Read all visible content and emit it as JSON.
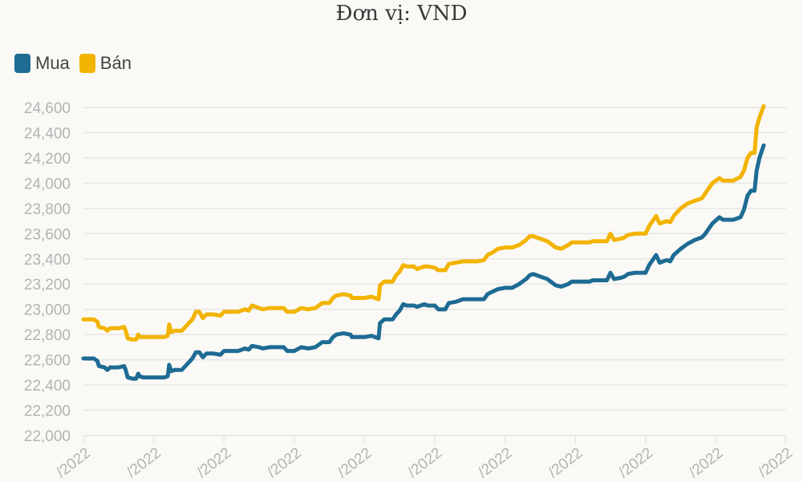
{
  "subtitle": "Đơn vị: VND",
  "colors": {
    "mua": "#1e6b93",
    "ban": "#f2b400",
    "grid": "#e6e6e6",
    "tick_text": "#b3b3b3"
  },
  "chart_data": {
    "type": "line",
    "title": "",
    "subtitle": "Đơn vị: VND",
    "xlabel": "",
    "ylabel": "",
    "ylim": [
      22000,
      24600
    ],
    "y_ticks": [
      22000,
      22200,
      22400,
      22600,
      22800,
      23000,
      23200,
      23400,
      23600,
      23800,
      24000,
      24200,
      24400,
      24600
    ],
    "y_tick_labels": [
      "22,000",
      "22,200",
      "22,400",
      "22,600",
      "22,800",
      "23,000",
      "23,200",
      "23,400",
      "23,600",
      "23,800",
      "24,000",
      "24,200",
      "24,400",
      "24,600"
    ],
    "x_tick_labels": [
      "/2022",
      "/2022",
      "/2022",
      "/2022",
      "/2022",
      "/2022",
      "/2022",
      "/2022",
      "/2022",
      "/2022",
      "/2022"
    ],
    "x_range": [
      0,
      10
    ],
    "grid": true,
    "legend": "top-left",
    "series": [
      {
        "name": "Mua",
        "color": "#1e6b93",
        "points": [
          [
            0,
            22610
          ],
          [
            0.15,
            22610
          ],
          [
            0.2,
            22590
          ],
          [
            0.22,
            22550
          ],
          [
            0.3,
            22540
          ],
          [
            0.34,
            22520
          ],
          [
            0.38,
            22540
          ],
          [
            0.5,
            22540
          ],
          [
            0.58,
            22550
          ],
          [
            0.6,
            22520
          ],
          [
            0.63,
            22460
          ],
          [
            0.7,
            22450
          ],
          [
            0.75,
            22450
          ],
          [
            0.78,
            22490
          ],
          [
            0.8,
            22470
          ],
          [
            0.85,
            22460
          ],
          [
            1.15,
            22460
          ],
          [
            1.2,
            22470
          ],
          [
            1.22,
            22560
          ],
          [
            1.25,
            22510
          ],
          [
            1.3,
            22520
          ],
          [
            1.4,
            22520
          ],
          [
            1.5,
            22580
          ],
          [
            1.55,
            22610
          ],
          [
            1.6,
            22660
          ],
          [
            1.65,
            22660
          ],
          [
            1.7,
            22620
          ],
          [
            1.75,
            22650
          ],
          [
            1.85,
            22650
          ],
          [
            1.95,
            22640
          ],
          [
            2.0,
            22670
          ],
          [
            2.2,
            22670
          ],
          [
            2.3,
            22690
          ],
          [
            2.35,
            22680
          ],
          [
            2.4,
            22710
          ],
          [
            2.5,
            22700
          ],
          [
            2.55,
            22690
          ],
          [
            2.65,
            22700
          ],
          [
            2.85,
            22700
          ],
          [
            2.9,
            22670
          ],
          [
            3.0,
            22670
          ],
          [
            3.1,
            22700
          ],
          [
            3.2,
            22690
          ],
          [
            3.3,
            22700
          ],
          [
            3.4,
            22740
          ],
          [
            3.5,
            22740
          ],
          [
            3.55,
            22780
          ],
          [
            3.6,
            22800
          ],
          [
            3.7,
            22810
          ],
          [
            3.8,
            22800
          ],
          [
            3.82,
            22780
          ],
          [
            3.9,
            22780
          ],
          [
            4.0,
            22780
          ],
          [
            4.1,
            22790
          ],
          [
            4.15,
            22780
          ],
          [
            4.2,
            22770
          ],
          [
            4.22,
            22890
          ],
          [
            4.28,
            22920
          ],
          [
            4.4,
            22920
          ],
          [
            4.45,
            22960
          ],
          [
            4.5,
            22990
          ],
          [
            4.55,
            23040
          ],
          [
            4.6,
            23030
          ],
          [
            4.7,
            23030
          ],
          [
            4.75,
            23020
          ],
          [
            4.85,
            23040
          ],
          [
            4.9,
            23030
          ],
          [
            5.0,
            23030
          ],
          [
            5.05,
            23000
          ],
          [
            5.15,
            23000
          ],
          [
            5.2,
            23050
          ],
          [
            5.3,
            23060
          ],
          [
            5.4,
            23080
          ],
          [
            5.6,
            23080
          ],
          [
            5.7,
            23080
          ],
          [
            5.75,
            23120
          ],
          [
            5.82,
            23140
          ],
          [
            5.9,
            23160
          ],
          [
            6.0,
            23170
          ],
          [
            6.1,
            23170
          ],
          [
            6.2,
            23200
          ],
          [
            6.3,
            23240
          ],
          [
            6.35,
            23270
          ],
          [
            6.4,
            23280
          ],
          [
            6.5,
            23260
          ],
          [
            6.6,
            23240
          ],
          [
            6.65,
            23220
          ],
          [
            6.72,
            23190
          ],
          [
            6.8,
            23180
          ],
          [
            6.9,
            23200
          ],
          [
            6.95,
            23220
          ],
          [
            7.2,
            23220
          ],
          [
            7.25,
            23230
          ],
          [
            7.45,
            23230
          ],
          [
            7.5,
            23290
          ],
          [
            7.55,
            23240
          ],
          [
            7.65,
            23250
          ],
          [
            7.7,
            23260
          ],
          [
            7.75,
            23280
          ],
          [
            7.85,
            23290
          ],
          [
            8.0,
            23290
          ],
          [
            8.05,
            23350
          ],
          [
            8.15,
            23430
          ],
          [
            8.2,
            23370
          ],
          [
            8.25,
            23380
          ],
          [
            8.3,
            23390
          ],
          [
            8.35,
            23380
          ],
          [
            8.4,
            23430
          ],
          [
            8.5,
            23480
          ],
          [
            8.6,
            23520
          ],
          [
            8.7,
            23550
          ],
          [
            8.8,
            23570
          ],
          [
            8.85,
            23600
          ],
          [
            8.9,
            23640
          ],
          [
            8.95,
            23680
          ],
          [
            9.05,
            23730
          ],
          [
            9.1,
            23710
          ],
          [
            9.25,
            23710
          ],
          [
            9.35,
            23730
          ],
          [
            9.4,
            23790
          ],
          [
            9.45,
            23900
          ],
          [
            9.5,
            23940
          ],
          [
            9.55,
            23940
          ],
          [
            9.58,
            24100
          ],
          [
            9.62,
            24200
          ],
          [
            9.68,
            24300
          ]
        ]
      },
      {
        "name": "Bán",
        "color": "#f2b400",
        "points": [
          [
            0,
            22920
          ],
          [
            0.15,
            22920
          ],
          [
            0.2,
            22900
          ],
          [
            0.22,
            22860
          ],
          [
            0.3,
            22850
          ],
          [
            0.34,
            22830
          ],
          [
            0.38,
            22850
          ],
          [
            0.5,
            22850
          ],
          [
            0.58,
            22860
          ],
          [
            0.6,
            22830
          ],
          [
            0.63,
            22770
          ],
          [
            0.7,
            22760
          ],
          [
            0.75,
            22760
          ],
          [
            0.78,
            22800
          ],
          [
            0.8,
            22780
          ],
          [
            0.85,
            22780
          ],
          [
            1.15,
            22780
          ],
          [
            1.2,
            22790
          ],
          [
            1.22,
            22880
          ],
          [
            1.25,
            22820
          ],
          [
            1.3,
            22830
          ],
          [
            1.4,
            22830
          ],
          [
            1.5,
            22890
          ],
          [
            1.55,
            22920
          ],
          [
            1.6,
            22980
          ],
          [
            1.65,
            22980
          ],
          [
            1.7,
            22930
          ],
          [
            1.75,
            22960
          ],
          [
            1.85,
            22960
          ],
          [
            1.95,
            22950
          ],
          [
            2.0,
            22980
          ],
          [
            2.2,
            22980
          ],
          [
            2.3,
            23000
          ],
          [
            2.35,
            22990
          ],
          [
            2.4,
            23030
          ],
          [
            2.5,
            23010
          ],
          [
            2.55,
            23000
          ],
          [
            2.65,
            23010
          ],
          [
            2.85,
            23010
          ],
          [
            2.9,
            22980
          ],
          [
            3.0,
            22980
          ],
          [
            3.1,
            23010
          ],
          [
            3.2,
            23000
          ],
          [
            3.3,
            23010
          ],
          [
            3.4,
            23050
          ],
          [
            3.5,
            23050
          ],
          [
            3.55,
            23090
          ],
          [
            3.6,
            23110
          ],
          [
            3.7,
            23120
          ],
          [
            3.8,
            23110
          ],
          [
            3.82,
            23090
          ],
          [
            3.9,
            23090
          ],
          [
            4.0,
            23090
          ],
          [
            4.1,
            23100
          ],
          [
            4.15,
            23090
          ],
          [
            4.2,
            23080
          ],
          [
            4.22,
            23190
          ],
          [
            4.28,
            23220
          ],
          [
            4.4,
            23220
          ],
          [
            4.45,
            23270
          ],
          [
            4.5,
            23300
          ],
          [
            4.55,
            23350
          ],
          [
            4.6,
            23340
          ],
          [
            4.7,
            23340
          ],
          [
            4.75,
            23320
          ],
          [
            4.85,
            23340
          ],
          [
            4.9,
            23340
          ],
          [
            5.0,
            23330
          ],
          [
            5.05,
            23310
          ],
          [
            5.15,
            23310
          ],
          [
            5.2,
            23360
          ],
          [
            5.3,
            23370
          ],
          [
            5.4,
            23380
          ],
          [
            5.6,
            23380
          ],
          [
            5.7,
            23390
          ],
          [
            5.75,
            23430
          ],
          [
            5.82,
            23450
          ],
          [
            5.9,
            23480
          ],
          [
            6.0,
            23490
          ],
          [
            6.1,
            23490
          ],
          [
            6.2,
            23510
          ],
          [
            6.3,
            23550
          ],
          [
            6.35,
            23580
          ],
          [
            6.4,
            23580
          ],
          [
            6.5,
            23560
          ],
          [
            6.6,
            23540
          ],
          [
            6.65,
            23520
          ],
          [
            6.72,
            23490
          ],
          [
            6.8,
            23480
          ],
          [
            6.9,
            23510
          ],
          [
            6.95,
            23530
          ],
          [
            7.2,
            23530
          ],
          [
            7.25,
            23540
          ],
          [
            7.45,
            23540
          ],
          [
            7.5,
            23600
          ],
          [
            7.55,
            23550
          ],
          [
            7.65,
            23560
          ],
          [
            7.7,
            23570
          ],
          [
            7.75,
            23590
          ],
          [
            7.85,
            23600
          ],
          [
            8.0,
            23600
          ],
          [
            8.05,
            23660
          ],
          [
            8.15,
            23740
          ],
          [
            8.2,
            23680
          ],
          [
            8.25,
            23690
          ],
          [
            8.3,
            23700
          ],
          [
            8.35,
            23690
          ],
          [
            8.4,
            23740
          ],
          [
            8.5,
            23800
          ],
          [
            8.6,
            23840
          ],
          [
            8.7,
            23860
          ],
          [
            8.8,
            23880
          ],
          [
            8.85,
            23920
          ],
          [
            8.9,
            23960
          ],
          [
            8.95,
            24000
          ],
          [
            9.05,
            24040
          ],
          [
            9.1,
            24020
          ],
          [
            9.25,
            24020
          ],
          [
            9.35,
            24050
          ],
          [
            9.4,
            24100
          ],
          [
            9.45,
            24200
          ],
          [
            9.5,
            24240
          ],
          [
            9.55,
            24240
          ],
          [
            9.58,
            24440
          ],
          [
            9.62,
            24520
          ],
          [
            9.68,
            24610
          ]
        ]
      }
    ]
  }
}
